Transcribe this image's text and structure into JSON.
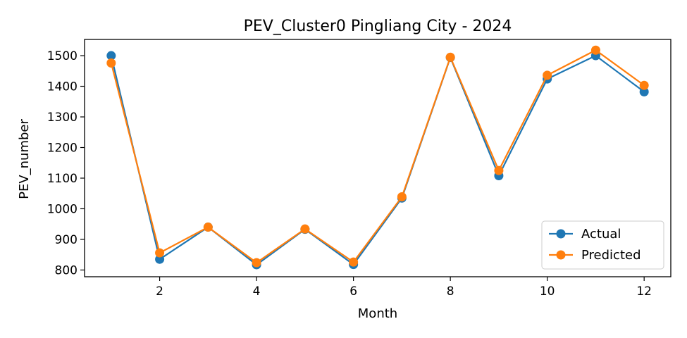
{
  "chart_data": {
    "type": "line",
    "title": "PEV_Cluster0 Pingliang City - 2024",
    "xlabel": "Month",
    "ylabel": "PEV_number",
    "x": [
      1,
      2,
      3,
      4,
      5,
      6,
      7,
      8,
      9,
      10,
      11,
      12
    ],
    "xlim": [
      0.45,
      12.55
    ],
    "ylim": [
      778,
      1553
    ],
    "xticks": [
      2,
      4,
      6,
      8,
      10,
      12
    ],
    "yticks": [
      800,
      900,
      1000,
      1100,
      1200,
      1300,
      1400,
      1500
    ],
    "grid": false,
    "legend": "lower-right",
    "series": [
      {
        "name": "Actual",
        "color": "#1f77b4",
        "marker": "circle",
        "values": [
          1500,
          835,
          940,
          817,
          933,
          818,
          1035,
          1494,
          1108,
          1424,
          1500,
          1382
        ]
      },
      {
        "name": "Predicted",
        "color": "#ff7f0e",
        "marker": "circle",
        "values": [
          1476,
          856,
          940,
          824,
          934,
          826,
          1039,
          1495,
          1125,
          1436,
          1518,
          1403
        ]
      }
    ]
  }
}
